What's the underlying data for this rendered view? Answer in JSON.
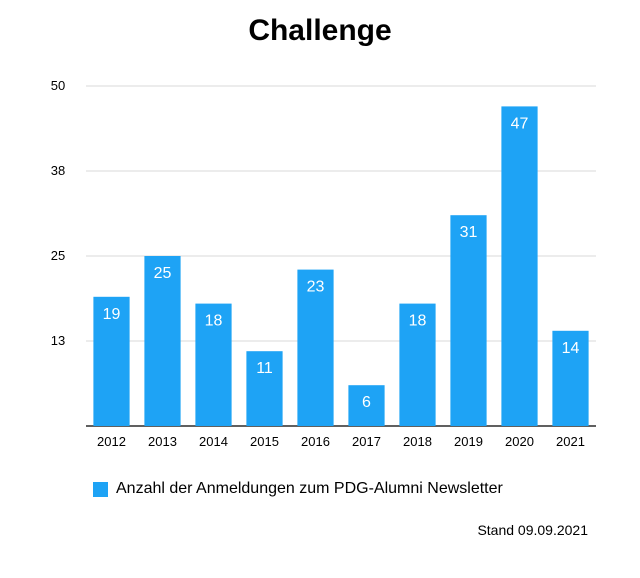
{
  "chart_data": {
    "type": "bar",
    "title": "Challenge",
    "categories": [
      "2012",
      "2013",
      "2014",
      "2015",
      "2016",
      "2017",
      "2018",
      "2019",
      "2020",
      "2021"
    ],
    "series": [
      {
        "name": "Anzahl der Anmeldungen zum PDG-Alumni Newsletter",
        "values": [
          19,
          25,
          18,
          11,
          23,
          6,
          18,
          31,
          47,
          14
        ]
      }
    ],
    "data_labels": [
      "19",
      "25",
      "18",
      "11",
      "23",
      "6",
      "18",
      "31",
      "47",
      "14"
    ],
    "ylim": [
      0,
      50
    ],
    "yticks": [
      "13",
      "25",
      "38",
      "50"
    ],
    "ytick_values": [
      12.5,
      25,
      37.5,
      50
    ],
    "grid": true,
    "legend_position": "bottom-left",
    "bar_color": "#1EA3F5",
    "xlabel": "",
    "ylabel": ""
  },
  "footnote": "Stand 09.09.2021"
}
